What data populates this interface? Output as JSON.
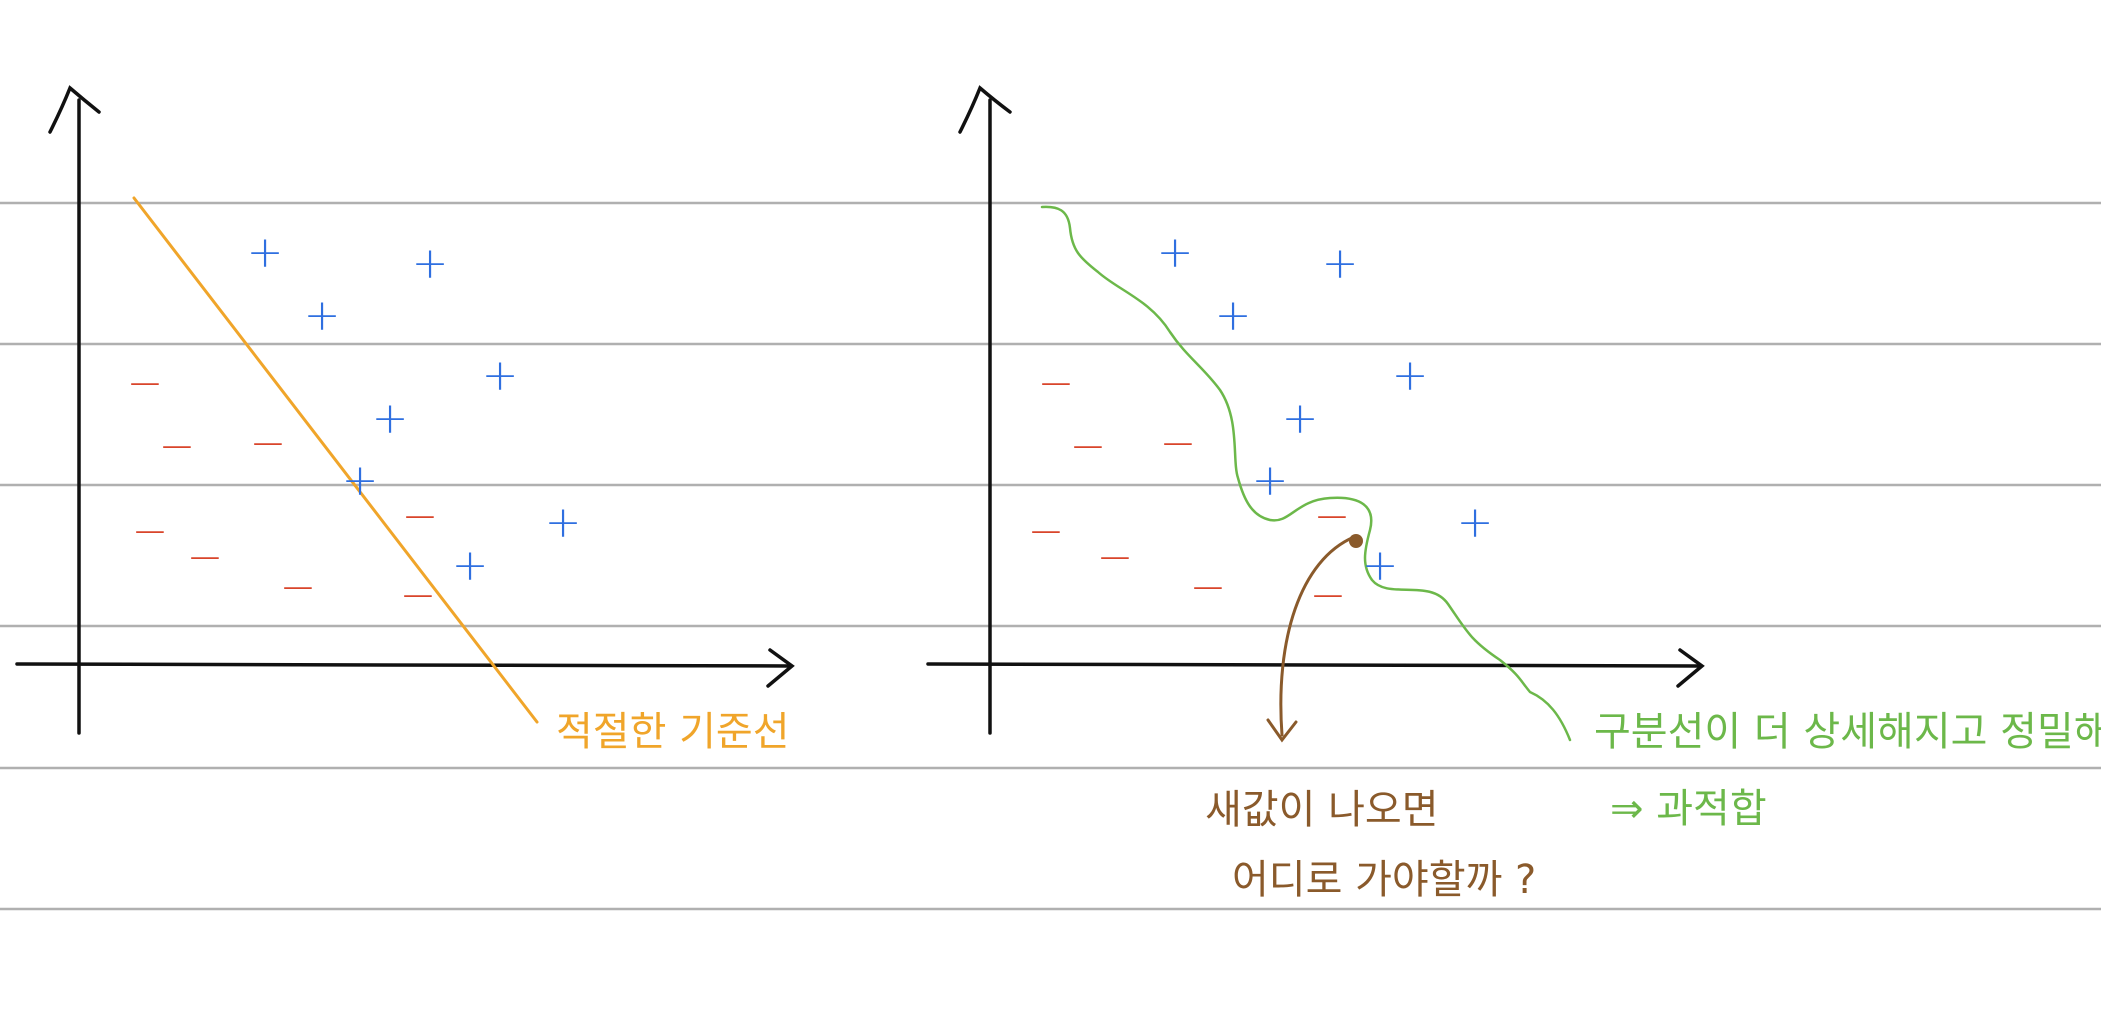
{
  "colors": {
    "paper": "#ffffff",
    "ruled_line": "#b0b0b0",
    "axis": "#111111",
    "positive": "#2f6fe0",
    "negative": "#d9452b",
    "linear_boundary": "#f0a52a",
    "curved_boundary": "#6cb84a",
    "question": "#8a5a2b"
  },
  "symbols": {
    "positive": "+",
    "negative": "−"
  },
  "left_panel": {
    "boundary_label": "적절한 기준선"
  },
  "right_panel": {
    "new_point_question_line1": "새값이 나오면",
    "new_point_question_line2": "어디로 가야할까 ?",
    "overfit_note_line1": "구분선이 더 상세해지고 정밀해짐",
    "overfit_note_line2": "⇒ 과적합"
  }
}
